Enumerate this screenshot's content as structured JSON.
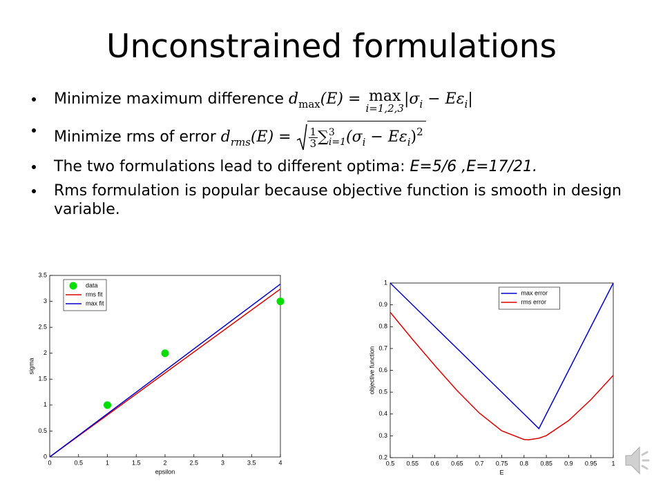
{
  "title": "Unconstrained formulations",
  "bullets": [
    {
      "text": "Minimize maximum difference ",
      "formula": [
        "d",
        "max",
        "(E) = ",
        "max",
        "i=1,2,3",
        "|σ",
        "i",
        " − Eε",
        "i",
        "|"
      ]
    },
    {
      "text": "Minimize rms of error ",
      "formula": [
        "d",
        "rms",
        "(E) = ",
        "1",
        "3",
        "∑",
        "3",
        "i=1",
        "(σ",
        "i",
        " − Eε",
        "i",
        ")",
        "2"
      ]
    },
    {
      "text": "The two formulations lead to different optima: ",
      "emphasis": "E=5/6 ,E=17/21."
    },
    {
      "text": "Rms formulation is popular because objective function is smooth in design variable."
    }
  ],
  "chart_data": [
    {
      "type": "line",
      "xlabel": "epsilon",
      "ylabel": "sigma",
      "xlim": [
        0,
        4
      ],
      "xticks": [
        0,
        0.5,
        1,
        1.5,
        2,
        2.5,
        3,
        3.5,
        4
      ],
      "ylim": [
        0,
        3.5
      ],
      "yticks": [
        0,
        0.5,
        1,
        1.5,
        2,
        2.5,
        3,
        3.5
      ],
      "grid": false,
      "legend": "upper left",
      "series": [
        {
          "name": "data",
          "color": "#00dd00",
          "style": "markers",
          "x": [
            1,
            2,
            4
          ],
          "values": [
            1,
            2,
            3
          ]
        },
        {
          "name": "rms fit",
          "color": "#dd0000",
          "style": "line",
          "x": [
            0,
            4
          ],
          "values": [
            0,
            3.238
          ]
        },
        {
          "name": "max fit",
          "color": "#0000cc",
          "style": "line",
          "x": [
            0,
            4
          ],
          "values": [
            0,
            3.333
          ]
        }
      ]
    },
    {
      "type": "line",
      "xlabel": "E",
      "ylabel": "objective function",
      "xlim": [
        0.5,
        1
      ],
      "xticks": [
        0.5,
        0.55,
        0.6,
        0.65,
        0.7,
        0.75,
        0.8,
        0.85,
        0.9,
        0.95,
        1
      ],
      "ylim": [
        0.2,
        1
      ],
      "yticks": [
        0.2,
        0.3,
        0.4,
        0.5,
        0.6,
        0.7,
        0.8,
        0.9,
        1
      ],
      "grid": false,
      "legend": "upper center",
      "x": [
        0.5,
        0.55,
        0.6,
        0.65,
        0.7,
        0.75,
        0.8,
        0.81,
        0.8333,
        0.85,
        0.9,
        0.95,
        1
      ],
      "series": [
        {
          "name": "max error",
          "color": "#0000cc",
          "style": "line",
          "values": [
            1,
            0.9,
            0.8,
            0.7,
            0.6,
            0.5,
            0.4,
            0.38,
            0.333,
            0.4,
            0.6,
            0.8,
            1
          ]
        },
        {
          "name": "rms error",
          "color": "#dd0000",
          "style": "line",
          "values": [
            0.866,
            0.742,
            0.622,
            0.507,
            0.404,
            0.323,
            0.283,
            0.282,
            0.289,
            0.301,
            0.37,
            0.466,
            0.577
          ]
        }
      ]
    }
  ]
}
